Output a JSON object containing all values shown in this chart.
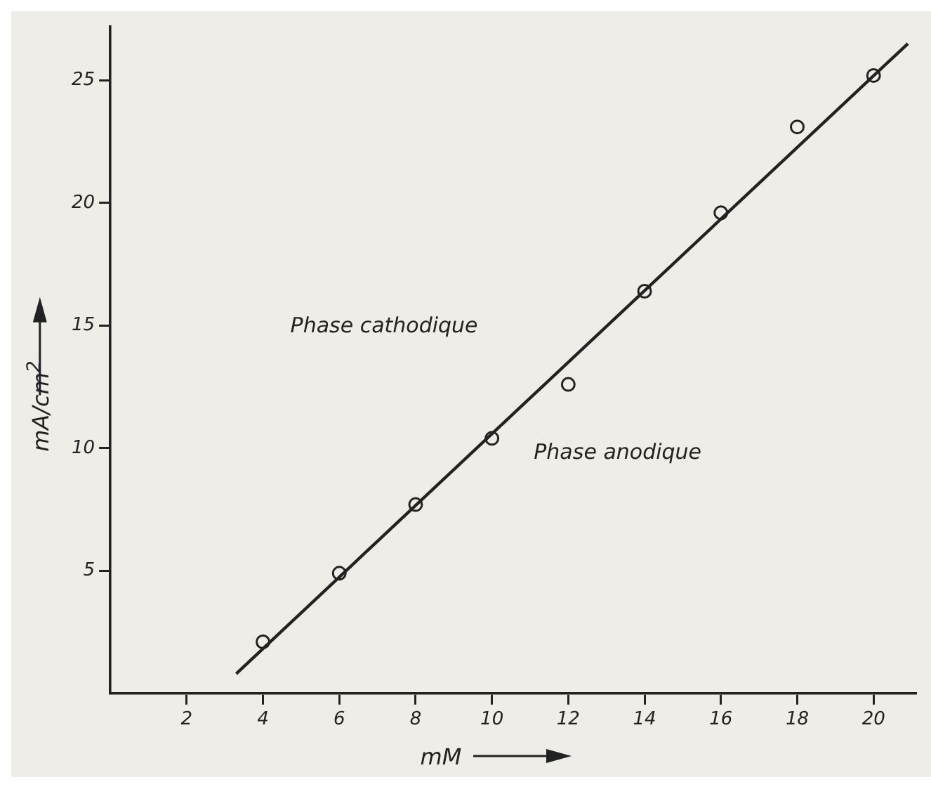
{
  "chart_data": {
    "type": "scatter",
    "xlabel": "mM",
    "ylabel": "mA/cm$^{2}$",
    "xlim": [
      0,
      21.1
    ],
    "ylim": [
      0,
      27.2
    ],
    "xticks": [
      2,
      4,
      6,
      8,
      10,
      12,
      14,
      16,
      18,
      20
    ],
    "yticks": [
      5,
      10,
      15,
      20,
      25
    ],
    "series": [
      {
        "marker": "circle",
        "color": "#222222",
        "x": [
          4,
          6,
          8,
          10,
          12,
          14,
          16,
          18,
          20
        ],
        "values": [
          2.1,
          4.9,
          7.7,
          10.4,
          12.6,
          16.4,
          19.6,
          23.1,
          25.2
        ]
      },
      {
        "type": "line",
        "marker": "none",
        "color": "#222222",
        "x": [
          3.3,
          20.9
        ],
        "values": [
          0.8,
          26.5
        ]
      }
    ],
    "annotations": [
      "Phase cathodique",
      "Phase anodique"
    ]
  }
}
